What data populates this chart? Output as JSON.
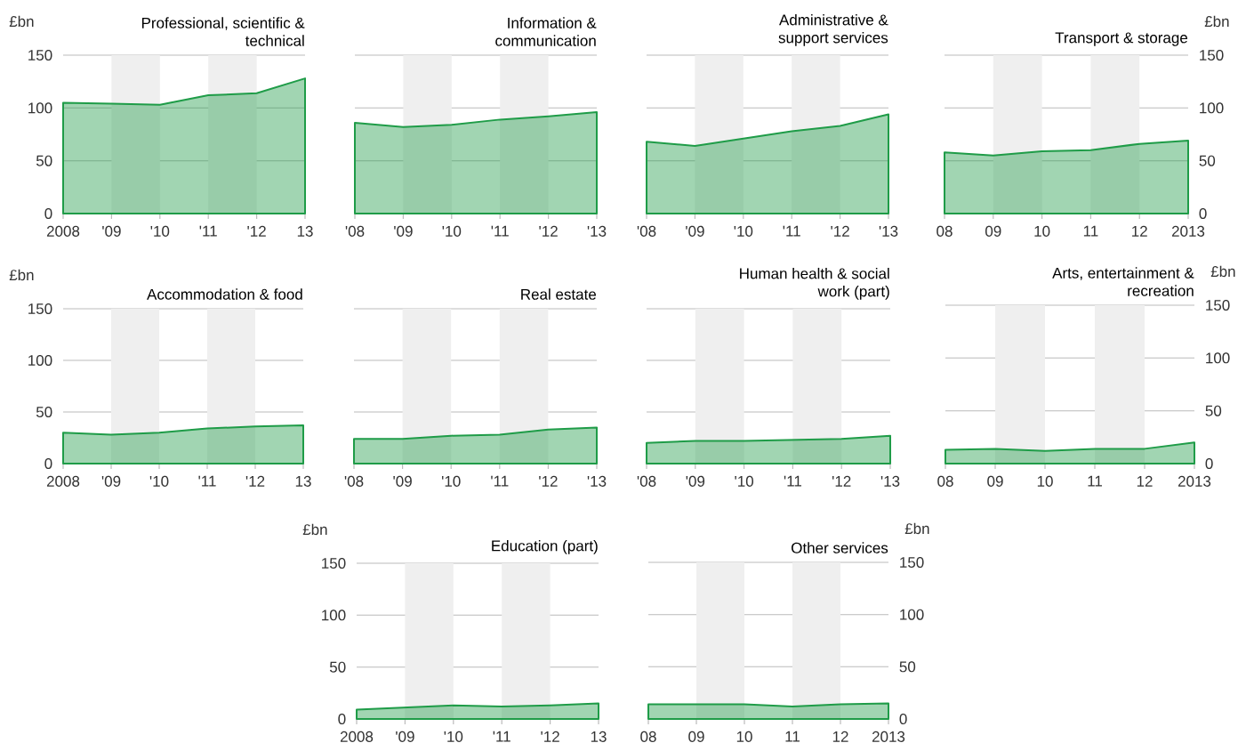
{
  "chart_data": [
    {
      "type": "area",
      "title": "Professional, scientific & technical",
      "ylabel": "£bn",
      "x": [
        2008,
        2009,
        2010,
        2011,
        2012,
        2013
      ],
      "xlim": [
        2008,
        2013
      ],
      "xticks": [
        {
          "value": 2008,
          "label": "2008"
        },
        {
          "value": 2009,
          "label": "'09"
        },
        {
          "value": 2010,
          "label": "'10"
        },
        {
          "value": 2011,
          "label": "'11"
        },
        {
          "value": 2012,
          "label": "'12"
        },
        {
          "value": 2013,
          "label": "13"
        }
      ],
      "ylim": [
        0,
        150
      ],
      "yticks": [
        0,
        50,
        100,
        150
      ],
      "grid": "y",
      "series": [
        {
          "color": "#1f9c48",
          "values": [
            105,
            104,
            103,
            112,
            114,
            128
          ]
        }
      ],
      "bands": [
        {
          "axis": "x",
          "from": 2009,
          "to": 2010,
          "color": "#efefef"
        },
        {
          "axis": "x",
          "from": 2011,
          "to": 2012,
          "color": "#efefef"
        }
      ]
    },
    {
      "type": "area",
      "title": "Information & communication",
      "x": [
        2008,
        2009,
        2010,
        2011,
        2012,
        2013
      ],
      "xlim": [
        2008,
        2013
      ],
      "xticks": [
        {
          "value": 2008,
          "label": "'08"
        },
        {
          "value": 2009,
          "label": "'09"
        },
        {
          "value": 2010,
          "label": "'10"
        },
        {
          "value": 2011,
          "label": "'11"
        },
        {
          "value": 2012,
          "label": "'12"
        },
        {
          "value": 2013,
          "label": "'13"
        }
      ],
      "ylim": [
        0,
        150
      ],
      "yticks": [
        0,
        50,
        100,
        150
      ],
      "grid": "y",
      "tick_labels": "x",
      "series": [
        {
          "color": "#1f9c48",
          "values": [
            86,
            82,
            84,
            89,
            92,
            96
          ]
        }
      ],
      "bands": [
        {
          "axis": "x",
          "from": 2009,
          "to": 2010,
          "color": "#efefef"
        },
        {
          "axis": "x",
          "from": 2011,
          "to": 2012,
          "color": "#efefef"
        }
      ]
    },
    {
      "type": "area",
      "title": "Administrative & support services",
      "x": [
        2008,
        2009,
        2010,
        2011,
        2012,
        2013
      ],
      "xlim": [
        2008,
        2013
      ],
      "xticks": [
        {
          "value": 2008,
          "label": "'08"
        },
        {
          "value": 2009,
          "label": "'09"
        },
        {
          "value": 2010,
          "label": "'10"
        },
        {
          "value": 2011,
          "label": "'11"
        },
        {
          "value": 2012,
          "label": "'12"
        },
        {
          "value": 2013,
          "label": "'13"
        }
      ],
      "ylim": [
        0,
        150
      ],
      "yticks": [
        0,
        50,
        100,
        150
      ],
      "grid": "y",
      "tick_labels": "x",
      "series": [
        {
          "color": "#1f9c48",
          "values": [
            68,
            64,
            71,
            78,
            83,
            94
          ]
        }
      ],
      "bands": [
        {
          "axis": "x",
          "from": 2009,
          "to": 2010,
          "color": "#efefef"
        },
        {
          "axis": "x",
          "from": 2011,
          "to": 2012,
          "color": "#efefef"
        }
      ]
    },
    {
      "type": "area",
      "title": "Transport & storage",
      "y2label": "£bn",
      "x": [
        2008,
        2009,
        2010,
        2011,
        2012,
        2013
      ],
      "xlim": [
        2008,
        2013
      ],
      "xticks": [
        {
          "value": 2008,
          "label": "08"
        },
        {
          "value": 2009,
          "label": "09"
        },
        {
          "value": 2010,
          "label": "10"
        },
        {
          "value": 2011,
          "label": "11"
        },
        {
          "value": 2012,
          "label": "12"
        },
        {
          "value": 2013,
          "label": "2013"
        }
      ],
      "y2lim": [
        0,
        150
      ],
      "y2ticks": [
        0,
        50,
        100,
        150
      ],
      "grid": "y",
      "series": [
        {
          "color": "#1f9c48",
          "axis": "y2",
          "values": [
            58,
            55,
            59,
            60,
            66,
            69
          ]
        }
      ],
      "bands": [
        {
          "axis": "x",
          "from": 2009,
          "to": 2010,
          "color": "#efefef"
        },
        {
          "axis": "x",
          "from": 2011,
          "to": 2012,
          "color": "#efefef"
        }
      ]
    },
    {
      "type": "area",
      "title": "Accommodation & food",
      "ylabel": "£bn",
      "x": [
        2008,
        2009,
        2010,
        2011,
        2012,
        2013
      ],
      "xlim": [
        2008,
        2013
      ],
      "xticks": [
        {
          "value": 2008,
          "label": "2008"
        },
        {
          "value": 2009,
          "label": "'09"
        },
        {
          "value": 2010,
          "label": "'10"
        },
        {
          "value": 2011,
          "label": "'11"
        },
        {
          "value": 2012,
          "label": "'12"
        },
        {
          "value": 2013,
          "label": "13"
        }
      ],
      "ylim": [
        0,
        150
      ],
      "yticks": [
        0,
        50,
        100,
        150
      ],
      "grid": "y",
      "series": [
        {
          "color": "#1f9c48",
          "values": [
            30,
            28,
            30,
            34,
            36,
            37
          ]
        }
      ],
      "bands": [
        {
          "axis": "x",
          "from": 2009,
          "to": 2010,
          "color": "#efefef"
        },
        {
          "axis": "x",
          "from": 2011,
          "to": 2012,
          "color": "#efefef"
        }
      ]
    },
    {
      "type": "area",
      "title": "Real estate",
      "x": [
        2008,
        2009,
        2010,
        2011,
        2012,
        2013
      ],
      "xlim": [
        2008,
        2013
      ],
      "xticks": [
        {
          "value": 2008,
          "label": "'08"
        },
        {
          "value": 2009,
          "label": "'09"
        },
        {
          "value": 2010,
          "label": "'10"
        },
        {
          "value": 2011,
          "label": "'11"
        },
        {
          "value": 2012,
          "label": "'12"
        },
        {
          "value": 2013,
          "label": "'13"
        }
      ],
      "ylim": [
        0,
        150
      ],
      "yticks": [
        0,
        50,
        100,
        150
      ],
      "grid": "y",
      "tick_labels": "x",
      "series": [
        {
          "color": "#1f9c48",
          "values": [
            24,
            24,
            27,
            28,
            33,
            35
          ]
        }
      ],
      "bands": [
        {
          "axis": "x",
          "from": 2009,
          "to": 2010,
          "color": "#efefef"
        },
        {
          "axis": "x",
          "from": 2011,
          "to": 2012,
          "color": "#efefef"
        }
      ]
    },
    {
      "type": "area",
      "title": "Human health & social work (part)",
      "x": [
        2008,
        2009,
        2010,
        2011,
        2012,
        2013
      ],
      "xlim": [
        2008,
        2013
      ],
      "xticks": [
        {
          "value": 2008,
          "label": "'08"
        },
        {
          "value": 2009,
          "label": "'09"
        },
        {
          "value": 2010,
          "label": "'10"
        },
        {
          "value": 2011,
          "label": "'11"
        },
        {
          "value": 2012,
          "label": "'12"
        },
        {
          "value": 2013,
          "label": "'13"
        }
      ],
      "ylim": [
        0,
        150
      ],
      "yticks": [
        0,
        50,
        100,
        150
      ],
      "grid": "y",
      "tick_labels": "x",
      "series": [
        {
          "color": "#1f9c48",
          "values": [
            20,
            22,
            22,
            23,
            24,
            27
          ]
        }
      ],
      "bands": [
        {
          "axis": "x",
          "from": 2009,
          "to": 2010,
          "color": "#efefef"
        },
        {
          "axis": "x",
          "from": 2011,
          "to": 2012,
          "color": "#efefef"
        }
      ]
    },
    {
      "type": "area",
      "title": "Arts, entertainment & recreation",
      "y2label": "£bn",
      "x": [
        2008,
        2009,
        2010,
        2011,
        2012,
        2013
      ],
      "xlim": [
        2008,
        2013
      ],
      "xticks": [
        {
          "value": 2008,
          "label": "08"
        },
        {
          "value": 2009,
          "label": "09"
        },
        {
          "value": 2010,
          "label": "10"
        },
        {
          "value": 2011,
          "label": "11"
        },
        {
          "value": 2012,
          "label": "12"
        },
        {
          "value": 2013,
          "label": "2013"
        }
      ],
      "y2lim": [
        0,
        150
      ],
      "y2ticks": [
        0,
        50,
        100,
        150
      ],
      "grid": "y",
      "series": [
        {
          "color": "#1f9c48",
          "axis": "y2",
          "values": [
            13,
            14,
            12,
            14,
            14,
            20
          ]
        }
      ],
      "bands": [
        {
          "axis": "x",
          "from": 2009,
          "to": 2010,
          "color": "#efefef"
        },
        {
          "axis": "x",
          "from": 2011,
          "to": 2012,
          "color": "#efefef"
        }
      ]
    },
    {
      "type": "area",
      "title": "Education (part)",
      "ylabel": "£bn",
      "x": [
        2008,
        2009,
        2010,
        2011,
        2012,
        2013
      ],
      "xlim": [
        2008,
        2013
      ],
      "xticks": [
        {
          "value": 2008,
          "label": "2008"
        },
        {
          "value": 2009,
          "label": "'09"
        },
        {
          "value": 2010,
          "label": "'10"
        },
        {
          "value": 2011,
          "label": "'11"
        },
        {
          "value": 2012,
          "label": "'12"
        },
        {
          "value": 2013,
          "label": "13"
        }
      ],
      "ylim": [
        0,
        150
      ],
      "yticks": [
        0,
        50,
        100,
        150
      ],
      "grid": "y",
      "series": [
        {
          "color": "#1f9c48",
          "values": [
            9,
            11,
            13,
            12,
            13,
            15
          ]
        }
      ],
      "bands": [
        {
          "axis": "x",
          "from": 2009,
          "to": 2010,
          "color": "#efefef"
        },
        {
          "axis": "x",
          "from": 2011,
          "to": 2012,
          "color": "#efefef"
        }
      ]
    },
    {
      "type": "area",
      "title": "Other services",
      "y2label": "£bn",
      "x": [
        2008,
        2009,
        2010,
        2011,
        2012,
        2013
      ],
      "xlim": [
        2008,
        2013
      ],
      "xticks": [
        {
          "value": 2008,
          "label": "08"
        },
        {
          "value": 2009,
          "label": "09"
        },
        {
          "value": 2010,
          "label": "10"
        },
        {
          "value": 2011,
          "label": "11"
        },
        {
          "value": 2012,
          "label": "12"
        },
        {
          "value": 2013,
          "label": "2013"
        }
      ],
      "y2lim": [
        0,
        150
      ],
      "y2ticks": [
        0,
        50,
        100,
        150
      ],
      "grid": "y",
      "series": [
        {
          "color": "#1f9c48",
          "axis": "y2",
          "values": [
            14,
            14,
            14,
            12,
            14,
            15
          ]
        }
      ],
      "bands": [
        {
          "axis": "x",
          "from": 2009,
          "to": 2010,
          "color": "#efefef"
        },
        {
          "axis": "x",
          "from": 2011,
          "to": 2012,
          "color": "#efefef"
        }
      ]
    }
  ]
}
